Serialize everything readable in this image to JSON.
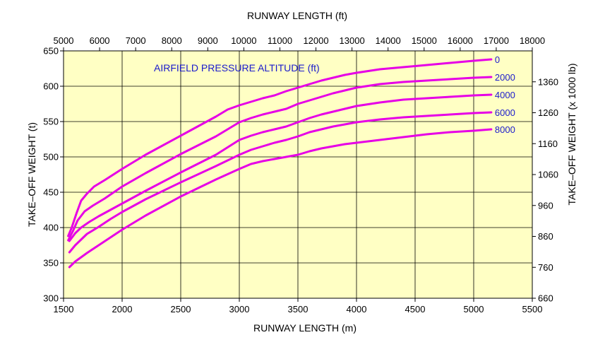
{
  "chart_data": {
    "type": "line",
    "title": "",
    "annotation": "AIRFIELD PRESSURE ALTITUDE (ft)",
    "xlabel": "RUNWAY LENGTH (m)",
    "ylabel": "TAKE–OFF WEIGHT (t)",
    "x2label": "RUNWAY LENGTH (ft)",
    "y2label": "TAKE–OFF WEIGHT (x 1000 lb)",
    "xlim": [
      1500,
      5500
    ],
    "ylim": [
      300,
      650
    ],
    "x2lim": [
      5000,
      18000
    ],
    "y2lim": [
      660,
      1460
    ],
    "xticks": [
      "1500",
      "2000",
      "2500",
      "3000",
      "3500",
      "4000",
      "4500",
      "5000",
      "5500"
    ],
    "yticks": [
      "300",
      "350",
      "400",
      "450",
      "500",
      "550",
      "600",
      "650"
    ],
    "x2ticks": [
      "5000",
      "6000",
      "7000",
      "8000",
      "9000",
      "10000",
      "11000",
      "12000",
      "13000",
      "14000",
      "15000",
      "16000",
      "17000",
      "18000"
    ],
    "y2ticks": [
      "660",
      "760",
      "860",
      "960",
      "1060",
      "1160",
      "1260",
      "1360"
    ],
    "grid": true,
    "background": "#ffffc4",
    "line_color": "#e600e6",
    "label_color": "#1a1acc",
    "series": [
      {
        "name": "0",
        "x": [
          1540,
          1570,
          1610,
          1650,
          1700,
          1760,
          1850,
          2000,
          2200,
          2500,
          2800,
          2900,
          3000,
          3100,
          3200,
          3300,
          3350,
          3400,
          3500,
          3600,
          3700,
          3800,
          3900,
          4000,
          4200,
          4400,
          4600,
          4800,
          5000,
          5150
        ],
        "y": [
          388,
          400,
          420,
          438,
          448,
          458,
          467,
          483,
          503,
          530,
          557,
          567,
          573,
          578,
          583,
          587,
          590,
          593,
          598,
          603,
          608,
          612,
          616,
          619,
          624,
          627,
          630,
          633,
          636,
          638
        ]
      },
      {
        "name": "2000",
        "x": [
          1540,
          1580,
          1620,
          1680,
          1750,
          1850,
          2000,
          2200,
          2500,
          2800,
          3000,
          3100,
          3200,
          3300,
          3400,
          3500,
          3600,
          3700,
          3800,
          3900,
          4000,
          4200,
          4400,
          4600,
          4800,
          5000,
          5150
        ],
        "y": [
          382,
          395,
          410,
          423,
          431,
          441,
          458,
          477,
          504,
          529,
          549,
          555,
          560,
          564,
          568,
          575,
          580,
          585,
          590,
          594,
          598,
          603,
          606,
          608,
          610,
          612,
          613
        ]
      },
      {
        "name": "4000",
        "x": [
          1550,
          1600,
          1650,
          1720,
          1800,
          1900,
          2000,
          2200,
          2500,
          2800,
          3000,
          3100,
          3200,
          3300,
          3400,
          3500,
          3600,
          3700,
          3800,
          3900,
          4000,
          4200,
          4400,
          4600,
          4800,
          5000,
          5150
        ],
        "y": [
          381,
          392,
          400,
          408,
          416,
          425,
          434,
          452,
          478,
          503,
          524,
          530,
          535,
          539,
          543,
          549,
          555,
          560,
          564,
          568,
          572,
          577,
          581,
          583,
          585,
          587,
          588
        ]
      },
      {
        "name": "6000",
        "x": [
          1550,
          1600,
          1700,
          1800,
          1900,
          2000,
          2200,
          2500,
          2800,
          3000,
          3100,
          3200,
          3300,
          3400,
          3500,
          3600,
          3700,
          3800,
          3900,
          4000,
          4200,
          4400,
          4600,
          4800,
          5000,
          5150
        ],
        "y": [
          365,
          375,
          391,
          401,
          412,
          422,
          440,
          464,
          487,
          503,
          510,
          515,
          520,
          524,
          529,
          535,
          539,
          543,
          546,
          549,
          553,
          556,
          558,
          560,
          562,
          563
        ]
      },
      {
        "name": "8000",
        "x": [
          1550,
          1600,
          1700,
          1800,
          1900,
          2000,
          2200,
          2500,
          2800,
          3000,
          3100,
          3200,
          3300,
          3400,
          3500,
          3600,
          3700,
          3800,
          3900,
          4000,
          4200,
          4400,
          4600,
          4800,
          5000,
          5150
        ],
        "y": [
          344,
          352,
          364,
          375,
          386,
          397,
          417,
          444,
          468,
          483,
          490,
          494,
          497,
          500,
          503,
          508,
          512,
          515,
          518,
          520,
          524,
          528,
          532,
          535,
          537,
          539
        ]
      }
    ]
  }
}
